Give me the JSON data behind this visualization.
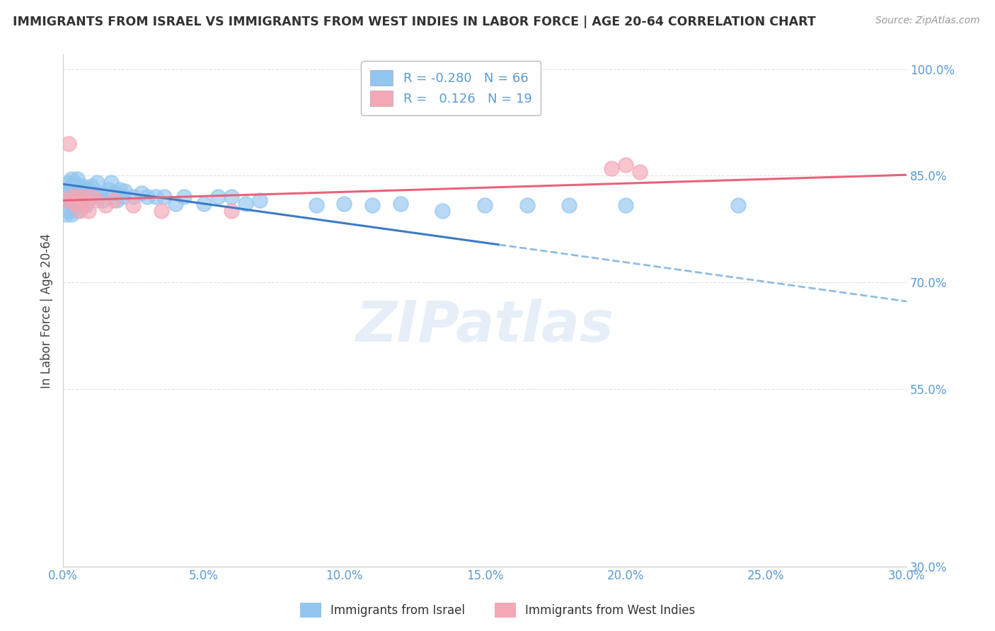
{
  "title": "IMMIGRANTS FROM ISRAEL VS IMMIGRANTS FROM WEST INDIES IN LABOR FORCE | AGE 20-64 CORRELATION CHART",
  "source": "Source: ZipAtlas.com",
  "ylabel": "In Labor Force | Age 20-64",
  "xlim": [
    0.0,
    0.3
  ],
  "ylim": [
    0.3,
    1.02
  ],
  "yticks": [
    0.3,
    0.55,
    0.7,
    0.85,
    1.0
  ],
  "ytick_labels": [
    "30.0%",
    "55.0%",
    "70.0%",
    "85.0%",
    "100.0%"
  ],
  "xticks": [
    0.0,
    0.05,
    0.1,
    0.15,
    0.2,
    0.25,
    0.3
  ],
  "xtick_labels": [
    "0.0%",
    "5.0%",
    "10.0%",
    "15.0%",
    "20.0%",
    "25.0%",
    "30.0%"
  ],
  "legend_r_israel": "-0.280",
  "legend_n_israel": "66",
  "legend_r_wi": " 0.126",
  "legend_n_wi": "19",
  "israel_color": "#92C5F0",
  "wi_color": "#F4A7B5",
  "trend_israel_solid_color": "#3C7BC4",
  "trend_israel_dash_color": "#90BDE0",
  "trend_wi_color": "#E8637A",
  "watermark": "ZIPatlas",
  "background_color": "#FFFFFF",
  "grid_color": "#DDDDDD",
  "axis_label_color": "#5B9BD5",
  "title_color": "#333333",
  "israel_x": [
    0.001,
    0.001,
    0.001,
    0.002,
    0.002,
    0.002,
    0.002,
    0.003,
    0.003,
    0.003,
    0.003,
    0.003,
    0.004,
    0.004,
    0.004,
    0.005,
    0.005,
    0.005,
    0.005,
    0.005,
    0.006,
    0.006,
    0.006,
    0.007,
    0.007,
    0.007,
    0.008,
    0.008,
    0.008,
    0.009,
    0.009,
    0.01,
    0.01,
    0.011,
    0.012,
    0.013,
    0.014,
    0.016,
    0.017,
    0.018,
    0.019,
    0.02,
    0.021,
    0.022,
    0.025,
    0.028,
    0.03,
    0.033,
    0.036,
    0.04,
    0.043,
    0.05,
    0.055,
    0.06,
    0.065,
    0.07,
    0.09,
    0.1,
    0.11,
    0.12,
    0.135,
    0.15,
    0.165,
    0.18,
    0.2,
    0.24
  ],
  "israel_y": [
    0.825,
    0.815,
    0.795,
    0.84,
    0.825,
    0.815,
    0.8,
    0.845,
    0.835,
    0.82,
    0.81,
    0.795,
    0.84,
    0.825,
    0.81,
    0.845,
    0.835,
    0.825,
    0.815,
    0.8,
    0.835,
    0.82,
    0.81,
    0.835,
    0.82,
    0.81,
    0.83,
    0.82,
    0.808,
    0.83,
    0.815,
    0.835,
    0.82,
    0.825,
    0.84,
    0.825,
    0.815,
    0.83,
    0.84,
    0.825,
    0.815,
    0.83,
    0.82,
    0.828,
    0.82,
    0.825,
    0.82,
    0.82,
    0.82,
    0.81,
    0.82,
    0.81,
    0.82,
    0.82,
    0.81,
    0.815,
    0.808,
    0.81,
    0.808,
    0.81,
    0.8,
    0.808,
    0.808,
    0.808,
    0.808,
    0.808
  ],
  "wi_x": [
    0.001,
    0.002,
    0.003,
    0.004,
    0.005,
    0.006,
    0.007,
    0.008,
    0.009,
    0.01,
    0.012,
    0.015,
    0.018,
    0.025,
    0.035,
    0.06,
    0.195,
    0.2,
    0.205
  ],
  "wi_y": [
    0.815,
    0.895,
    0.82,
    0.81,
    0.82,
    0.8,
    0.82,
    0.81,
    0.8,
    0.82,
    0.815,
    0.808,
    0.815,
    0.808,
    0.8,
    0.8,
    0.86,
    0.865,
    0.855
  ],
  "trend_israel_slope": -0.55,
  "trend_israel_intercept": 0.838,
  "trend_israel_solid_end": 0.155,
  "trend_wi_slope": 0.12,
  "trend_wi_intercept": 0.815
}
